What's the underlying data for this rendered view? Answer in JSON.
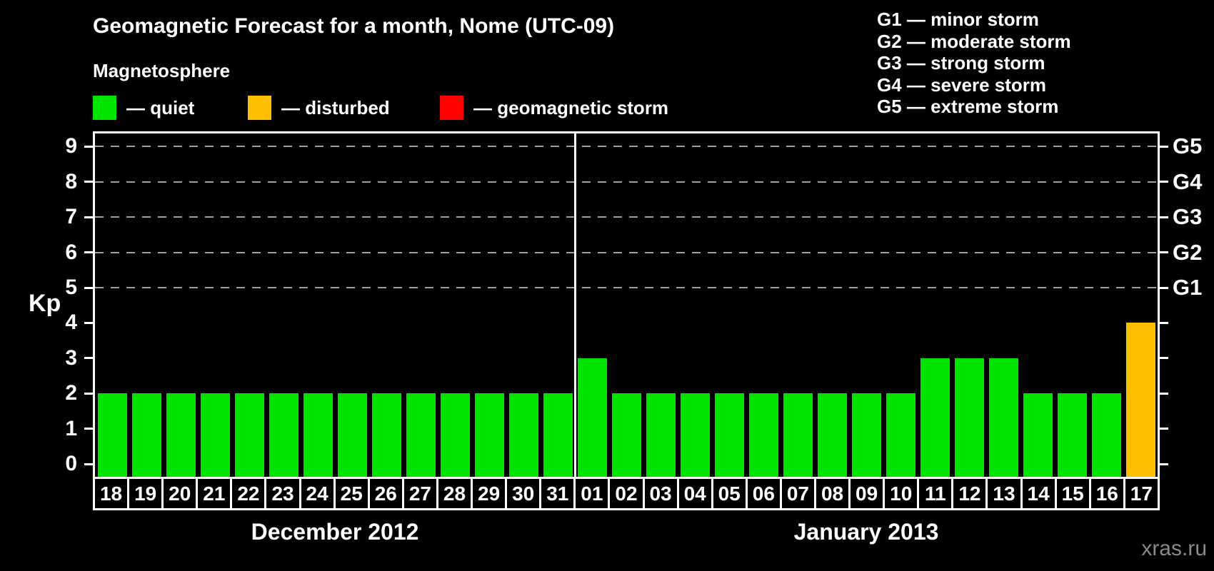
{
  "header": {
    "title": "Geomagnetic Forecast for a month, Nome (UTC-09)",
    "subtitle": "Magnetosphere",
    "legend": [
      {
        "name": "quiet",
        "label": "— quiet",
        "color": "#00e400"
      },
      {
        "name": "disturbed",
        "label": "— disturbed",
        "color": "#ffbf00"
      },
      {
        "name": "geomagnetic-storm",
        "label": "— geomagnetic storm",
        "color": "#ff0000"
      }
    ],
    "storm_scale": [
      "G1 — minor storm",
      "G2 — moderate storm",
      "G3 — strong storm",
      "G4 — severe storm",
      "G5 — extreme storm"
    ]
  },
  "watermark": "xras.ru",
  "chart_data": {
    "type": "bar",
    "title": "Geomagnetic Forecast for a month, Nome (UTC-09)",
    "xlabel": "",
    "ylabel": "Kp",
    "ylim": [
      0,
      9
    ],
    "y_ticks": [
      0,
      1,
      2,
      3,
      4,
      5,
      6,
      7,
      8,
      9
    ],
    "grid": "dashed horizontal gridlines at storm levels only",
    "gridline_levels": [
      5,
      6,
      7,
      8,
      9
    ],
    "right_axis_labels": [
      {
        "kp": 5,
        "label": "G1"
      },
      {
        "kp": 6,
        "label": "G2"
      },
      {
        "kp": 7,
        "label": "G3"
      },
      {
        "kp": 8,
        "label": "G4"
      },
      {
        "kp": 9,
        "label": "G5"
      }
    ],
    "status_colors": {
      "quiet": "#00e400",
      "disturbed": "#ffbf00",
      "storm": "#ff0000"
    },
    "months": [
      {
        "label": "December 2012",
        "days": [
          {
            "day": "18",
            "kp": 2,
            "status": "quiet"
          },
          {
            "day": "19",
            "kp": 2,
            "status": "quiet"
          },
          {
            "day": "20",
            "kp": 2,
            "status": "quiet"
          },
          {
            "day": "21",
            "kp": 2,
            "status": "quiet"
          },
          {
            "day": "22",
            "kp": 2,
            "status": "quiet"
          },
          {
            "day": "23",
            "kp": 2,
            "status": "quiet"
          },
          {
            "day": "24",
            "kp": 2,
            "status": "quiet"
          },
          {
            "day": "25",
            "kp": 2,
            "status": "quiet"
          },
          {
            "day": "26",
            "kp": 2,
            "status": "quiet"
          },
          {
            "day": "27",
            "kp": 2,
            "status": "quiet"
          },
          {
            "day": "28",
            "kp": 2,
            "status": "quiet"
          },
          {
            "day": "29",
            "kp": 2,
            "status": "quiet"
          },
          {
            "day": "30",
            "kp": 2,
            "status": "quiet"
          },
          {
            "day": "31",
            "kp": 2,
            "status": "quiet"
          }
        ]
      },
      {
        "label": "January 2013",
        "days": [
          {
            "day": "01",
            "kp": 3,
            "status": "quiet"
          },
          {
            "day": "02",
            "kp": 2,
            "status": "quiet"
          },
          {
            "day": "03",
            "kp": 2,
            "status": "quiet"
          },
          {
            "day": "04",
            "kp": 2,
            "status": "quiet"
          },
          {
            "day": "05",
            "kp": 2,
            "status": "quiet"
          },
          {
            "day": "06",
            "kp": 2,
            "status": "quiet"
          },
          {
            "day": "07",
            "kp": 2,
            "status": "quiet"
          },
          {
            "day": "08",
            "kp": 2,
            "status": "quiet"
          },
          {
            "day": "09",
            "kp": 2,
            "status": "quiet"
          },
          {
            "day": "10",
            "kp": 2,
            "status": "quiet"
          },
          {
            "day": "11",
            "kp": 3,
            "status": "quiet"
          },
          {
            "day": "12",
            "kp": 3,
            "status": "quiet"
          },
          {
            "day": "13",
            "kp": 3,
            "status": "quiet"
          },
          {
            "day": "14",
            "kp": 2,
            "status": "quiet"
          },
          {
            "day": "15",
            "kp": 2,
            "status": "quiet"
          },
          {
            "day": "16",
            "kp": 2,
            "status": "quiet"
          },
          {
            "day": "17",
            "kp": 4,
            "status": "disturbed"
          }
        ]
      }
    ]
  }
}
